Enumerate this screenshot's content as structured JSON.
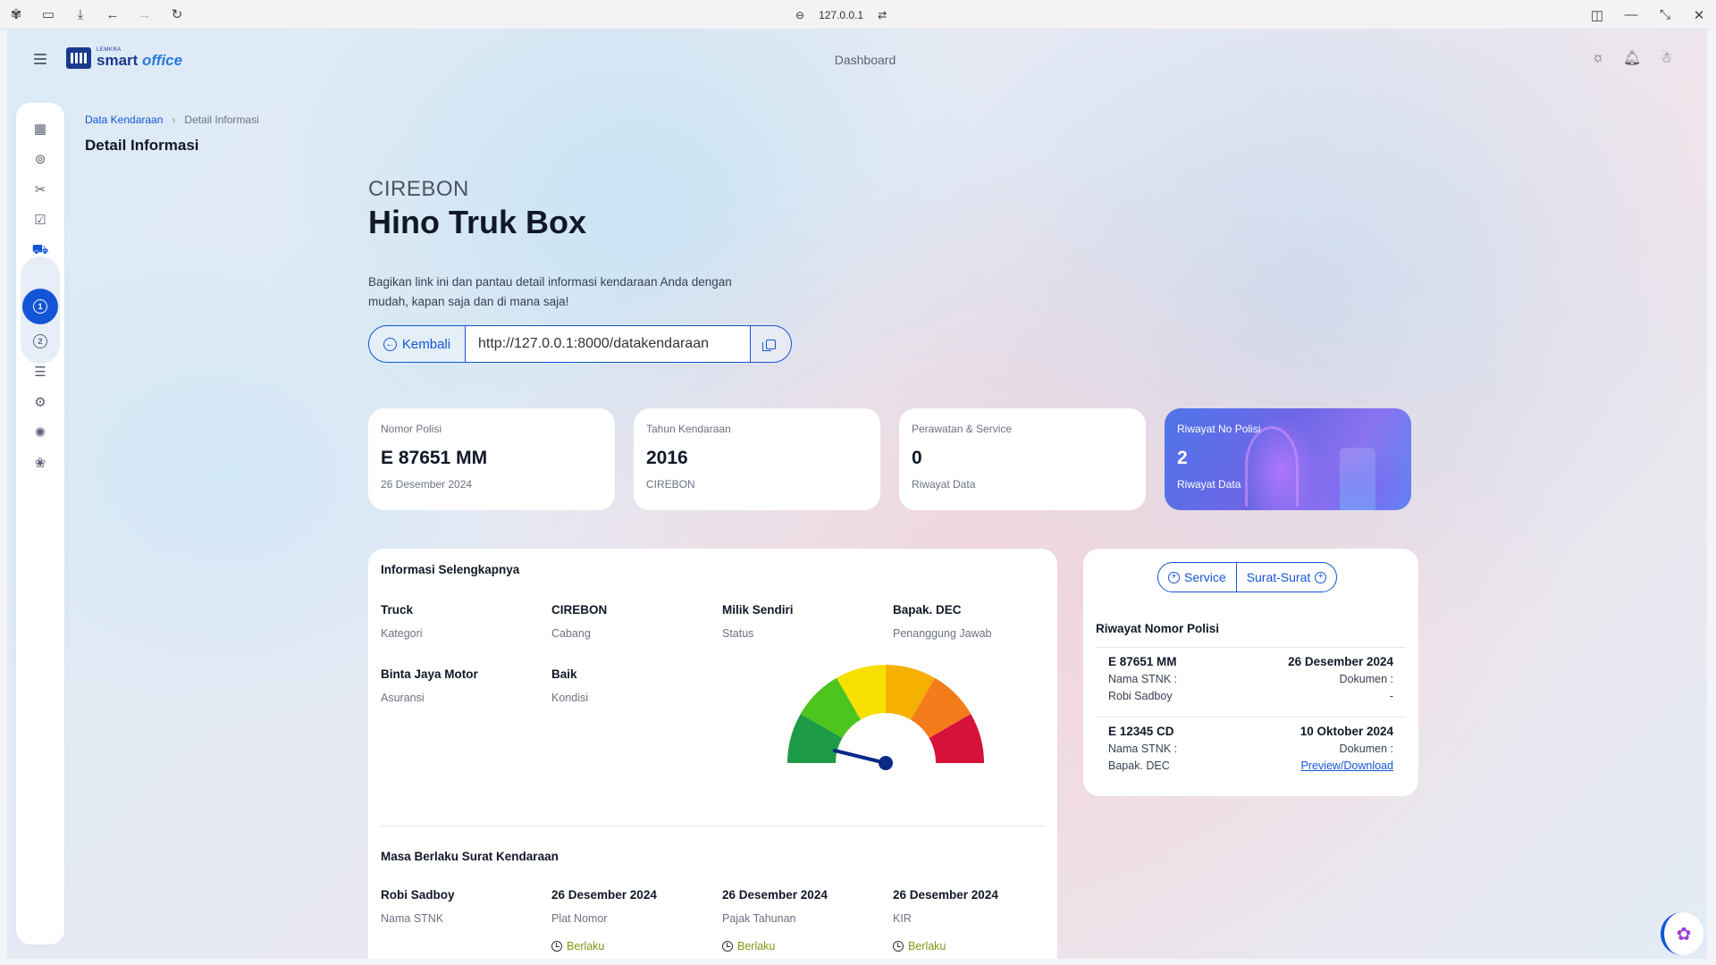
{
  "browser": {
    "address": "127.0.0.1"
  },
  "topbar": {
    "heading": "Dashboard",
    "logo_small": "LEMKRA",
    "logo_big": "smart",
    "logo_big2": "office"
  },
  "breadcrumb": {
    "parent": "Data Kendaraan",
    "current": "Detail Informasi"
  },
  "page_title": "Detail Informasi",
  "hero": {
    "city": "CIREBON",
    "vehicle_name": "Hino Truk Box",
    "description": "Bagikan link ini dan pantau detail informasi kendaraan Anda dengan mudah, kapan saja dan di mana saja!",
    "back_label": "Kembali",
    "share_url": "http://127.0.0.1:8000/datakendaraan"
  },
  "stats": [
    {
      "label": "Nomor Polisi",
      "value": "E 87651 MM",
      "sub": "26 Desember 2024"
    },
    {
      "label": "Tahun Kendaraan",
      "value": "2016",
      "sub": "CIREBON"
    },
    {
      "label": "Perawatan & Service",
      "value": "0",
      "sub": "Riwayat Data"
    },
    {
      "label": "Riwayat No Polisi",
      "value": "2",
      "sub": "Riwayat Data"
    }
  ],
  "info": {
    "title": "Informasi Selengkapnya",
    "fields": [
      {
        "value": "Truck",
        "key": "Kategori"
      },
      {
        "value": "CIREBON",
        "key": "Cabang"
      },
      {
        "value": "Milik Sendiri",
        "key": "Status"
      },
      {
        "value": "Bapak. DEC",
        "key": "Penanggung Jawab"
      },
      {
        "value": "Binta Jaya Motor",
        "key": "Asuransi"
      },
      {
        "value": "Baik",
        "key": "Kondisi"
      }
    ],
    "validity_title": "Masa Berlaku Surat Kendaraan",
    "validity": [
      {
        "value": "Robi Sadboy",
        "key": "Nama STNK",
        "status": ""
      },
      {
        "value": "26 Desember 2024",
        "key": "Plat Nomor",
        "status": "Berlaku"
      },
      {
        "value": "26 Desember 2024",
        "key": "Pajak Tahunan",
        "status": "Berlaku"
      },
      {
        "value": "26 Desember 2024",
        "key": "KIR",
        "status": "Berlaku"
      }
    ]
  },
  "gauge": {
    "colors": [
      "#1e9b46",
      "#4cc51f",
      "#f7e000",
      "#f5b000",
      "#f57c1a",
      "#d4123a"
    ],
    "needle_color": "#0a2a8a"
  },
  "history": {
    "service_label": "Service",
    "documents_label": "Surat-Surat",
    "title": "Riwayat Nomor Polisi",
    "rows": [
      {
        "plate": "E 87651 MM",
        "date": "26 Desember 2024",
        "stnk_label": "Nama STNK :",
        "doc_label": "Dokumen :",
        "stnk_name": "Robi Sadboy",
        "doc_value": "-"
      },
      {
        "plate": "E 12345 CD",
        "date": "10 Oktober 2024",
        "stnk_label": "Nama STNK :",
        "doc_label": "Dokumen :",
        "stnk_name": "Bapak. DEC",
        "doc_value": "Preview/Download"
      }
    ]
  },
  "colors": {
    "accent": "#1355d6",
    "ok_status": "#7a9a14"
  }
}
